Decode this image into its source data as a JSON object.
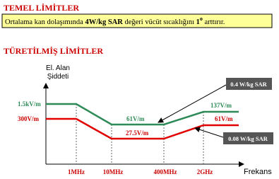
{
  "header": {
    "title": "TEMEL  LİMİTLER",
    "statement": {
      "part1": "Ortalama kan dolaşımında ",
      "bold1": "4W/kg SAR",
      "part2": " değeri vücüt sıcaklığını ",
      "bold2": "1",
      "superscript": "o",
      "part3": "  arttırır."
    }
  },
  "section": {
    "title": "TÜRETİLMİŞ LİMİTLER"
  },
  "diagram": {
    "y_axis_label": [
      "El. Alan",
      "Şiddeti"
    ],
    "x_axis_label": "Frekans",
    "x_ticks": [
      "1MHz",
      "10MHz",
      "400MHz",
      "2GHz"
    ],
    "upper_labels": [
      "1.5kV/m",
      "61V/m",
      "137V/m"
    ],
    "lower_labels": [
      "300V/m",
      "27.5V/m",
      "61V/m"
    ],
    "upper_box": "0.4 W/kg  SAR",
    "lower_box": "0.08 W/kg  SAR"
  }
}
